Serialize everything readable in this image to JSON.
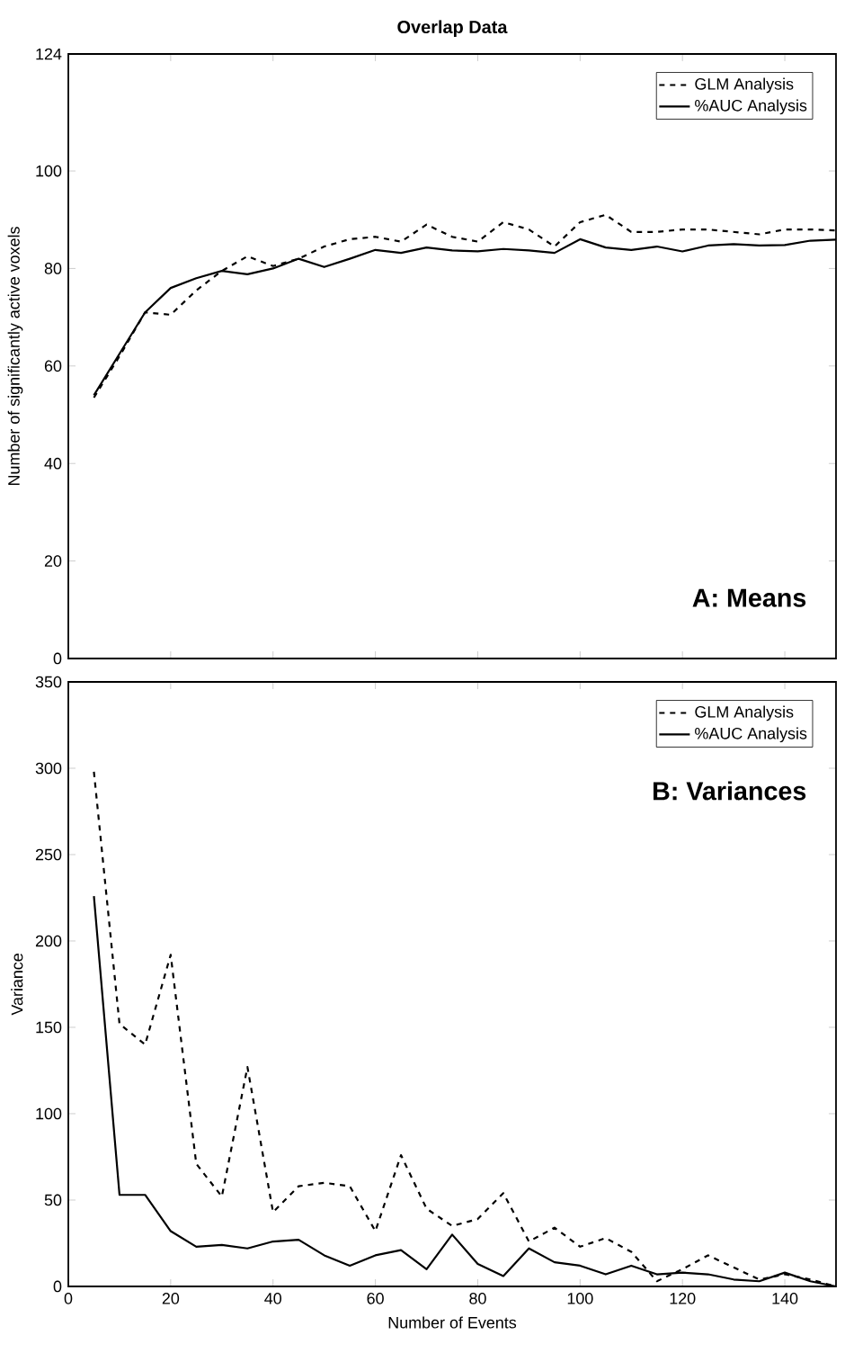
{
  "chart_data": [
    {
      "type": "line",
      "title": "Overlap Data",
      "ylabel": "Number of significantly active voxels",
      "annotations": [
        "A: Means"
      ],
      "x": [
        5,
        10,
        15,
        20,
        25,
        30,
        35,
        40,
        45,
        50,
        55,
        60,
        65,
        70,
        75,
        80,
        85,
        90,
        95,
        100,
        105,
        110,
        115,
        120,
        125,
        130,
        135,
        140,
        145,
        150
      ],
      "series": [
        {
          "name": "GLM Analysis",
          "color": "#000000",
          "line_style": "dashed",
          "values": [
            53.5,
            62,
            71,
            70.5,
            75.5,
            79.5,
            82.5,
            80.5,
            82,
            84.5,
            86,
            86.5,
            85.5,
            89,
            86.5,
            85.5,
            89.5,
            88,
            84.5,
            89.5,
            91,
            87.5,
            87.5,
            88,
            88,
            87.5,
            87,
            88,
            88,
            87.8
          ]
        },
        {
          "name": "%AUC Analysis",
          "color": "#000000",
          "line_style": "solid",
          "values": [
            54,
            62.5,
            71,
            76,
            78,
            79.5,
            78.8,
            80,
            82,
            80.3,
            82,
            83.8,
            83.2,
            84.3,
            83.7,
            83.5,
            84,
            83.7,
            83.2,
            86,
            84.3,
            83.8,
            84.5,
            83.5,
            84.7,
            85,
            84.7,
            84.8,
            85.7,
            85.9
          ]
        }
      ],
      "xlim": [
        0,
        150
      ],
      "xticks": [
        0,
        20,
        40,
        60,
        80,
        100,
        120,
        140
      ],
      "ylim": [
        0,
        124
      ],
      "yticks": [
        0,
        20,
        40,
        60,
        80,
        100,
        124
      ],
      "tick_labels": "y",
      "legend": "top right",
      "grid": false,
      "marker": "none"
    },
    {
      "type": "line",
      "xlabel": "Number of Events",
      "ylabel": "Variance",
      "annotations": [
        "B: Variances"
      ],
      "x": [
        5,
        10,
        15,
        20,
        25,
        30,
        35,
        40,
        45,
        50,
        55,
        60,
        65,
        70,
        75,
        80,
        85,
        90,
        95,
        100,
        105,
        110,
        115,
        120,
        125,
        130,
        135,
        140,
        145,
        150
      ],
      "series": [
        {
          "name": "GLM Analysis",
          "color": "#000000",
          "line_style": "dashed",
          "values": [
            298,
            152,
            140,
            192,
            71,
            52,
            127,
            43,
            58,
            60,
            58,
            32,
            76,
            45,
            35,
            39,
            54,
            26,
            34,
            23,
            28,
            20,
            3,
            10,
            18,
            11,
            4,
            7,
            4,
            0
          ]
        },
        {
          "name": "%AUC Analysis",
          "color": "#000000",
          "line_style": "solid",
          "values": [
            226,
            53,
            53,
            32,
            23,
            24,
            22,
            26,
            27,
            18,
            12,
            18,
            21,
            10,
            30,
            13,
            6,
            22,
            14,
            12,
            7,
            12,
            7,
            8,
            7,
            4,
            3,
            8,
            3,
            0
          ]
        }
      ],
      "xlim": [
        0,
        150
      ],
      "xticks": [
        0,
        20,
        40,
        60,
        80,
        100,
        120,
        140
      ],
      "ylim": [
        0,
        350
      ],
      "yticks": [
        0,
        50,
        100,
        150,
        200,
        250,
        300,
        350
      ],
      "legend": "top right",
      "grid": false,
      "marker": "none"
    }
  ]
}
